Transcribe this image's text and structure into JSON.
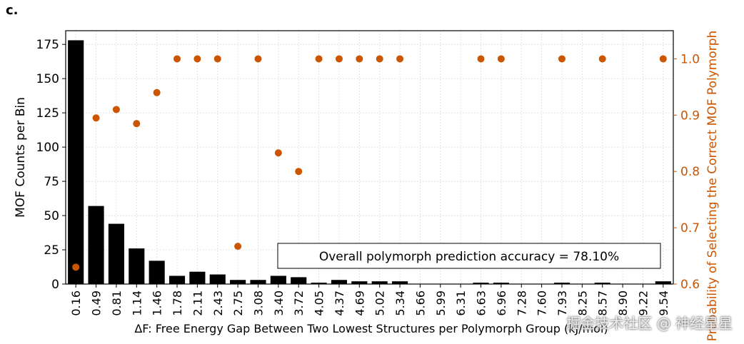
{
  "panel_label": "c.",
  "watermark": "掘金技术社区 @ 神经星星",
  "colors": {
    "bar": "#000000",
    "point": "#cc5500",
    "right_axis": "#cc5500",
    "grid": "#dddddd"
  },
  "chart_data": {
    "type": "bar",
    "categories": [
      "0.16",
      "0.49",
      "0.81",
      "1.14",
      "1.46",
      "1.78",
      "2.11",
      "2.43",
      "2.75",
      "3.08",
      "3.40",
      "3.72",
      "4.05",
      "4.37",
      "4.69",
      "5.02",
      "5.34",
      "5.66",
      "5.99",
      "6.31",
      "6.63",
      "6.96",
      "7.28",
      "7.60",
      "7.93",
      "8.25",
      "8.57",
      "8.90",
      "9.22",
      "9.54"
    ],
    "series": [
      {
        "type": "bar",
        "axis": "left",
        "values": [
          178,
          57,
          44,
          26,
          17,
          6,
          9,
          7,
          3,
          3,
          6,
          5,
          1,
          3,
          2,
          2,
          2,
          0,
          0,
          0,
          1,
          1,
          0,
          0,
          1,
          0,
          1,
          0,
          0,
          2
        ]
      },
      {
        "type": "scatter",
        "axis": "right",
        "values": [
          0.63,
          0.895,
          0.91,
          0.885,
          0.94,
          1.0,
          1.0,
          1.0,
          0.667,
          1.0,
          0.833,
          0.8,
          1.0,
          1.0,
          1.0,
          1.0,
          1.0,
          null,
          null,
          null,
          1.0,
          1.0,
          null,
          null,
          1.0,
          null,
          1.0,
          null,
          null,
          1.0
        ]
      }
    ],
    "xlabel": "ΔF: Free Energy Gap Between Two Lowest Structures per Polymorph Group (kJ/mol)",
    "ylabel": "MOF Counts per Bin",
    "y2label": "Probability of Selecting the Correct MOF Polymorph",
    "ylim": [
      0,
      185
    ],
    "y2lim": [
      0.6,
      1.05
    ],
    "yticks": [
      0,
      25,
      50,
      75,
      100,
      125,
      150,
      175
    ],
    "y2ticks": [
      "0.6",
      "0.7",
      "0.8",
      "0.9",
      "1.0"
    ],
    "annotation": "Overall polymorph prediction accuracy = 78.10%",
    "grid": true
  }
}
